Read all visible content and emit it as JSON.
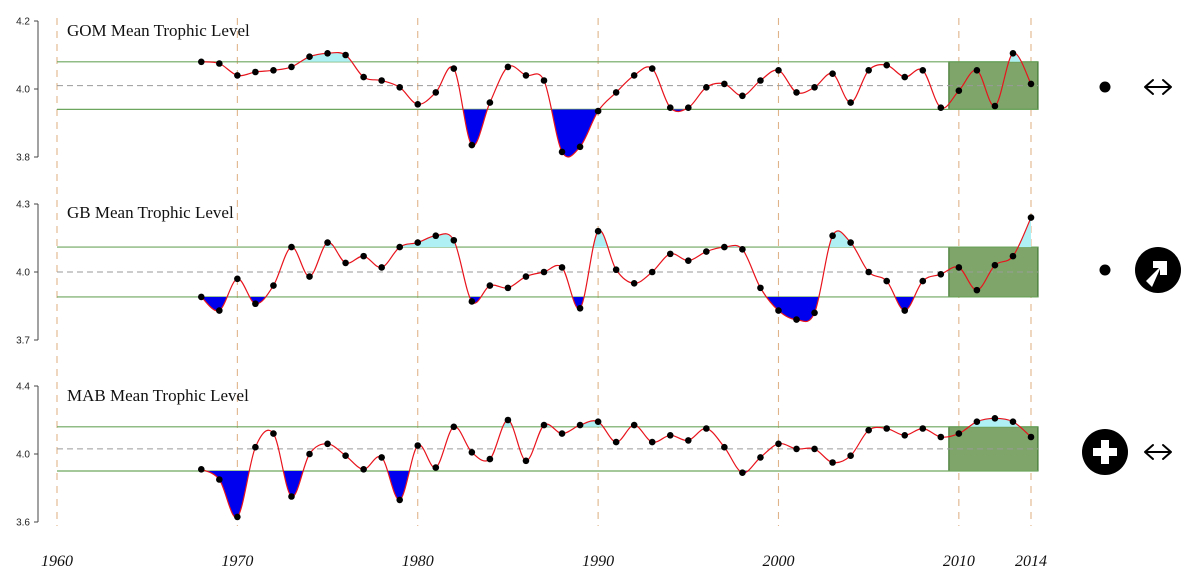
{
  "chart_data": {
    "type": "line",
    "x_axis": {
      "tick_labels": [
        "1960",
        "1970",
        "1980",
        "1990",
        "2000",
        "2010",
        "2014"
      ],
      "ticks": [
        1960,
        1970,
        1980,
        1990,
        2000,
        2010,
        2014
      ],
      "range": [
        1960,
        2014
      ]
    },
    "shaded_window": [
      2009.5,
      2014.5
    ],
    "colors": {
      "line": "#e8141d",
      "point": "#000000",
      "above_fill": "#aef0f3",
      "below_fill": "#0000ee",
      "window_fill": "#7fa56b",
      "window_stroke": "#2e6b1f",
      "band_line": "#6da65e",
      "mean_line": "#9a9a9a",
      "vertical_guides": "#e0b48a"
    },
    "panels": [
      {
        "title": "GOM Mean Trophic Level",
        "y_tick_labels": [
          "4.2",
          "4.0",
          "3.8"
        ],
        "y_ticks": [
          4.2,
          4.0,
          3.8
        ],
        "ylim": [
          3.8,
          4.2
        ],
        "mean": 4.01,
        "upper": 4.08,
        "lower": 3.94,
        "x": [
          1968,
          1969,
          1970,
          1971,
          1972,
          1973,
          1974,
          1975,
          1976,
          1977,
          1978,
          1979,
          1980,
          1981,
          1982,
          1983,
          1984,
          1985,
          1986,
          1987,
          1988,
          1989,
          1990,
          1991,
          1992,
          1993,
          1994,
          1995,
          1996,
          1997,
          1998,
          1999,
          2000,
          2001,
          2002,
          2003,
          2004,
          2005,
          2006,
          2007,
          2008,
          2009,
          2010,
          2011,
          2012,
          2013,
          2014
        ],
        "y": [
          4.08,
          4.075,
          4.04,
          4.05,
          4.055,
          4.065,
          4.095,
          4.105,
          4.1,
          4.035,
          4.025,
          4.005,
          3.955,
          3.99,
          4.06,
          3.835,
          3.96,
          4.065,
          4.04,
          4.025,
          3.815,
          3.83,
          3.935,
          3.99,
          4.04,
          4.06,
          3.945,
          3.945,
          4.005,
          4.015,
          3.98,
          4.025,
          4.055,
          3.99,
          4.005,
          4.045,
          3.96,
          4.055,
          4.07,
          4.035,
          4.055,
          3.945,
          3.995,
          4.055,
          3.95,
          4.105,
          4.015
        ],
        "trend_icon": "dot-icon",
        "direction_icon": "horizontal-double-arrow-icon"
      },
      {
        "title": "GB Mean Trophic Level",
        "y_tick_labels": [
          "4.3",
          "4.0",
          "3.7"
        ],
        "y_ticks": [
          4.3,
          4.0,
          3.7
        ],
        "ylim": [
          3.7,
          4.3
        ],
        "mean": 4.0,
        "upper": 4.11,
        "lower": 3.89,
        "x": [
          1968,
          1969,
          1970,
          1971,
          1972,
          1973,
          1974,
          1975,
          1976,
          1977,
          1978,
          1979,
          1980,
          1981,
          1982,
          1983,
          1984,
          1985,
          1986,
          1987,
          1988,
          1989,
          1990,
          1991,
          1992,
          1993,
          1994,
          1995,
          1996,
          1997,
          1998,
          1999,
          2000,
          2001,
          2002,
          2003,
          2004,
          2005,
          2006,
          2007,
          2008,
          2009,
          2010,
          2011,
          2012,
          2013,
          2014
        ],
        "y": [
          3.89,
          3.83,
          3.97,
          3.86,
          3.94,
          4.11,
          3.98,
          4.13,
          4.04,
          4.07,
          4.02,
          4.11,
          4.13,
          4.16,
          4.14,
          3.87,
          3.94,
          3.93,
          3.98,
          4.0,
          4.02,
          3.84,
          4.18,
          4.01,
          3.95,
          4.0,
          4.08,
          4.05,
          4.09,
          4.11,
          4.1,
          3.93,
          3.83,
          3.79,
          3.82,
          4.16,
          4.13,
          4.0,
          3.96,
          3.83,
          3.96,
          3.99,
          4.02,
          3.92,
          4.03,
          4.07,
          4.24
        ],
        "trend_icon": "dot-icon",
        "direction_icon": "upward-arrow-icon"
      },
      {
        "title": "MAB Mean Trophic Level",
        "y_tick_labels": [
          "4.4",
          "4.0",
          "3.6"
        ],
        "y_ticks": [
          4.4,
          4.0,
          3.6
        ],
        "ylim": [
          3.6,
          4.4
        ],
        "mean": 4.03,
        "upper": 4.16,
        "lower": 3.9,
        "x": [
          1968,
          1969,
          1970,
          1971,
          1972,
          1973,
          1974,
          1975,
          1976,
          1977,
          1978,
          1979,
          1980,
          1981,
          1982,
          1983,
          1984,
          1985,
          1986,
          1987,
          1988,
          1989,
          1990,
          1991,
          1992,
          1993,
          1994,
          1995,
          1996,
          1997,
          1998,
          1999,
          2000,
          2001,
          2002,
          2003,
          2004,
          2005,
          2006,
          2007,
          2008,
          2009,
          2010,
          2011,
          2012,
          2013,
          2014
        ],
        "y": [
          3.91,
          3.85,
          3.63,
          4.04,
          4.12,
          3.75,
          4.0,
          4.06,
          3.99,
          3.91,
          3.98,
          3.73,
          4.05,
          3.92,
          4.16,
          4.01,
          3.97,
          4.2,
          3.96,
          4.17,
          4.12,
          4.17,
          4.19,
          4.07,
          4.17,
          4.07,
          4.11,
          4.08,
          4.15,
          4.04,
          3.89,
          3.98,
          4.06,
          4.03,
          4.03,
          3.95,
          3.99,
          4.14,
          4.15,
          4.11,
          4.15,
          4.1,
          4.12,
          4.19,
          4.21,
          4.19,
          4.1
        ],
        "trend_icon": "plus-circle-icon",
        "direction_icon": "horizontal-double-arrow-icon"
      }
    ]
  }
}
